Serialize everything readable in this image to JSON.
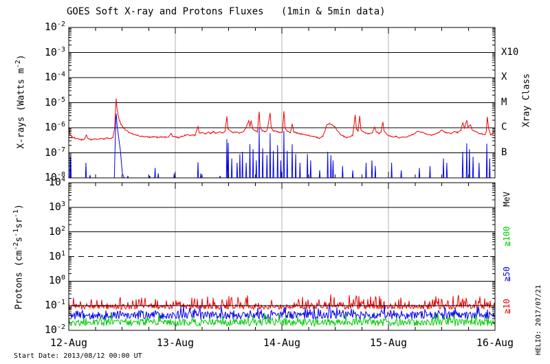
{
  "title": "GOES Soft X-ray and Protons Fluxes   (1min & 5min data)",
  "footer": {
    "start_date": "Start Date: 2013/08/12 00:00 UT"
  },
  "watermark": "HELIO: 2017/07/21",
  "colors": {
    "red": "#ee0000",
    "blue": "#0000ee",
    "green": "#00cc00",
    "grid_gray": "#b0b0b0",
    "axis": "#000000"
  },
  "chart_data": [
    {
      "type": "line",
      "panel": "xray",
      "ylabel": "X-rays (Watts m^{-2})",
      "y_tick_exponents": [
        -2,
        -3,
        -4,
        -5,
        -6,
        -7,
        -8
      ],
      "ylim_log": [
        -8,
        -2
      ],
      "x_range_days": [
        0,
        4
      ],
      "x_tick_labels": [
        "12-Aug",
        "13-Aug",
        "14-Aug",
        "15-Aug",
        "16-Aug"
      ],
      "x_minor_tick_days": 0.25,
      "grid_day_lines": [
        1,
        2,
        3
      ],
      "hlines_log": [
        -3,
        -4,
        -5,
        -6,
        -7
      ],
      "right_axis_title": "Xray Class",
      "right_axis_classes": [
        {
          "label": "X10",
          "log_y": -3
        },
        {
          "label": "X",
          "log_y": -4
        },
        {
          "label": "M",
          "log_y": -5
        },
        {
          "label": "C",
          "log_y": -6
        },
        {
          "label": "B",
          "log_y": -7
        }
      ],
      "series": [
        {
          "name": "xray_long_wavelength",
          "color": "#ee0000",
          "noise_log_amp": 0.022,
          "seed": 7,
          "points": [
            [
              0.0,
              6e-07
            ],
            [
              0.004,
              1e-06
            ],
            [
              0.01,
              5.5e-07
            ],
            [
              0.03,
              4.2e-07
            ],
            [
              0.06,
              3.9e-07
            ],
            [
              0.09,
              3.6e-07
            ],
            [
              0.12,
              3.3e-07
            ],
            [
              0.15,
              3.6e-07
            ],
            [
              0.165,
              5e-07
            ],
            [
              0.18,
              3.8e-07
            ],
            [
              0.21,
              3.3e-07
            ],
            [
              0.24,
              3.6e-07
            ],
            [
              0.27,
              3.4e-07
            ],
            [
              0.3,
              3.8e-07
            ],
            [
              0.33,
              3.6e-07
            ],
            [
              0.36,
              3.9e-07
            ],
            [
              0.39,
              3.7e-07
            ],
            [
              0.415,
              4.2e-07
            ],
            [
              0.43,
              9e-07
            ],
            [
              0.438,
              5e-06
            ],
            [
              0.445,
              1.45e-05
            ],
            [
              0.452,
              6.5e-06
            ],
            [
              0.462,
              3.2e-06
            ],
            [
              0.475,
              2e-06
            ],
            [
              0.49,
              1.4e-06
            ],
            [
              0.51,
              1.05e-06
            ],
            [
              0.535,
              8e-07
            ],
            [
              0.565,
              6.5e-07
            ],
            [
              0.6,
              5.5e-07
            ],
            [
              0.64,
              5e-07
            ],
            [
              0.68,
              4.6e-07
            ],
            [
              0.72,
              4.4e-07
            ],
            [
              0.76,
              4.2e-07
            ],
            [
              0.8,
              4.4e-07
            ],
            [
              0.83,
              4.1e-07
            ],
            [
              0.86,
              4.3e-07
            ],
            [
              0.9,
              4.2e-07
            ],
            [
              0.94,
              4.4e-07
            ],
            [
              0.96,
              6e-07
            ],
            [
              0.975,
              4.6e-07
            ],
            [
              1.0,
              4.4e-07
            ],
            [
              1.03,
              4e-07
            ],
            [
              1.06,
              4.6e-07
            ],
            [
              1.09,
              5e-07
            ],
            [
              1.11,
              5.5e-07
            ],
            [
              1.135,
              4.8e-07
            ],
            [
              1.16,
              5.2e-07
            ],
            [
              1.185,
              5e-07
            ],
            [
              1.213,
              1.15e-06
            ],
            [
              1.225,
              6e-07
            ],
            [
              1.25,
              6.5e-07
            ],
            [
              1.28,
              5.5e-07
            ],
            [
              1.31,
              6.5e-07
            ],
            [
              1.33,
              6e-07
            ],
            [
              1.355,
              7e-07
            ],
            [
              1.38,
              6.2e-07
            ],
            [
              1.41,
              6.8e-07
            ],
            [
              1.44,
              6.2e-07
            ],
            [
              1.465,
              7e-07
            ],
            [
              1.484,
              2.9e-06
            ],
            [
              1.495,
              9e-07
            ],
            [
              1.52,
              7e-07
            ],
            [
              1.545,
              6.4e-07
            ],
            [
              1.57,
              6.8e-07
            ],
            [
              1.6,
              6.2e-07
            ],
            [
              1.625,
              6.6e-07
            ],
            [
              1.65,
              8e-07
            ],
            [
              1.673,
              1.25e-06
            ],
            [
              1.69,
              2e-06
            ],
            [
              1.7,
              1.1e-06
            ],
            [
              1.712,
              1.9e-06
            ],
            [
              1.725,
              9e-07
            ],
            [
              1.745,
              7.5e-07
            ],
            [
              1.77,
              7e-07
            ],
            [
              1.787,
              4.2e-06
            ],
            [
              1.795,
              1.1e-06
            ],
            [
              1.815,
              7.5e-07
            ],
            [
              1.84,
              7e-07
            ],
            [
              1.862,
              8e-07
            ],
            [
              1.89,
              3.9e-06
            ],
            [
              1.9,
              1e-06
            ],
            [
              1.92,
              7.5e-07
            ],
            [
              1.95,
              7e-07
            ],
            [
              1.98,
              6.6e-07
            ],
            [
              2.005,
              6.8e-07
            ],
            [
              2.019,
              4.5e-06
            ],
            [
              2.03,
              1e-06
            ],
            [
              2.055,
              7e-07
            ],
            [
              2.08,
              6.4e-07
            ],
            [
              2.097,
              1.5e-06
            ],
            [
              2.11,
              7e-07
            ],
            [
              2.14,
              6.2e-07
            ],
            [
              2.18,
              5.6e-07
            ],
            [
              2.22,
              5.2e-07
            ],
            [
              2.26,
              4.8e-07
            ],
            [
              2.3,
              4.4e-07
            ],
            [
              2.33,
              4.1e-07
            ],
            [
              2.355,
              3.8e-07
            ],
            [
              2.385,
              4.6e-07
            ],
            [
              2.405,
              8e-07
            ],
            [
              2.42,
              1.25e-06
            ],
            [
              2.445,
              1.5e-06
            ],
            [
              2.47,
              1.35e-06
            ],
            [
              2.495,
              1.1e-06
            ],
            [
              2.52,
              7.5e-07
            ],
            [
              2.55,
              5.5e-07
            ],
            [
              2.58,
              4.5e-07
            ],
            [
              2.61,
              4e-07
            ],
            [
              2.64,
              4.4e-07
            ],
            [
              2.665,
              5e-07
            ],
            [
              2.688,
              3.2e-06
            ],
            [
              2.7,
              9e-07
            ],
            [
              2.715,
              7.5e-07
            ],
            [
              2.73,
              2.9e-06
            ],
            [
              2.742,
              8.5e-07
            ],
            [
              2.765,
              6.8e-07
            ],
            [
              2.79,
              6.2e-07
            ],
            [
              2.82,
              5.8e-07
            ],
            [
              2.85,
              6.4e-07
            ],
            [
              2.87,
              1.05e-06
            ],
            [
              2.885,
              7e-07
            ],
            [
              2.91,
              6e-07
            ],
            [
              2.93,
              6.6e-07
            ],
            [
              2.948,
              1.7e-06
            ],
            [
              2.96,
              7e-07
            ],
            [
              2.985,
              5.5e-07
            ],
            [
              3.01,
              4.8e-07
            ],
            [
              3.04,
              4.2e-07
            ],
            [
              3.07,
              4.6e-07
            ],
            [
              3.1,
              4e-07
            ],
            [
              3.13,
              4.4e-07
            ],
            [
              3.16,
              4.2e-07
            ],
            [
              3.19,
              4.6e-07
            ],
            [
              3.22,
              5.2e-07
            ],
            [
              3.25,
              6.2e-07
            ],
            [
              3.28,
              7.2e-07
            ],
            [
              3.31,
              6.8e-07
            ],
            [
              3.34,
              6e-07
            ],
            [
              3.37,
              5.4e-07
            ],
            [
              3.4,
              5.2e-07
            ],
            [
              3.44,
              5.6e-07
            ],
            [
              3.47,
              6.4e-07
            ],
            [
              3.5,
              8.2e-07
            ],
            [
              3.52,
              7e-07
            ],
            [
              3.55,
              6.2e-07
            ],
            [
              3.59,
              6e-07
            ],
            [
              3.62,
              6.8e-07
            ],
            [
              3.65,
              6.4e-07
            ],
            [
              3.68,
              8e-07
            ],
            [
              3.698,
              1.6e-06
            ],
            [
              3.712,
              9.5e-07
            ],
            [
              3.735,
              2e-06
            ],
            [
              3.748,
              1.05e-06
            ],
            [
              3.768,
              1.35e-06
            ],
            [
              3.785,
              8.5e-07
            ],
            [
              3.81,
              7.2e-07
            ],
            [
              3.845,
              6.2e-07
            ],
            [
              3.88,
              5.6e-07
            ],
            [
              3.905,
              5.2e-07
            ],
            [
              3.918,
              7e-07
            ],
            [
              3.928,
              2.8e-06
            ],
            [
              3.94,
              9e-07
            ],
            [
              3.958,
              5.2e-07
            ],
            [
              3.975,
              5.8e-07
            ],
            [
              4.0,
              7.5e-07
            ]
          ]
        },
        {
          "name": "xray_short_wavelength",
          "color": "#0000ee",
          "floor": 6e-09,
          "spike_half_width_days": 0.0045,
          "flare_event": [
            [
              0.428,
              6e-09
            ],
            [
              0.441,
              2.2e-06
            ],
            [
              0.4455,
              3.6e-06
            ],
            [
              0.455,
              1.1e-06
            ],
            [
              0.484,
              1.3e-07
            ],
            [
              0.503,
              1.5e-08
            ],
            [
              0.52,
              6e-09
            ]
          ],
          "spikes": [
            [
              0.013,
              7e-08
            ],
            [
              0.019,
              6.5e-08
            ],
            [
              0.161,
              4e-08
            ],
            [
              0.2,
              1.3e-08
            ],
            [
              0.555,
              1.2e-08
            ],
            [
              0.76,
              1.2e-08
            ],
            [
              0.81,
              2.5e-08
            ],
            [
              0.84,
              1.5e-08
            ],
            [
              0.99,
              1.5e-08
            ],
            [
              1.213,
              4.2e-08
            ],
            [
              1.24,
              1.5e-08
            ],
            [
              1.42,
              1.2e-08
            ],
            [
              1.484,
              3.5e-07
            ],
            [
              1.497,
              2.5e-07
            ],
            [
              1.53,
              6e-08
            ],
            [
              1.58,
              4e-08
            ],
            [
              1.606,
              9e-08
            ],
            [
              1.63,
              1.1e-07
            ],
            [
              1.665,
              4e-08
            ],
            [
              1.7,
              2.2e-07
            ],
            [
              1.73,
              1.4e-07
            ],
            [
              1.76,
              5e-08
            ],
            [
              1.787,
              1e-06
            ],
            [
              1.82,
              1.5e-07
            ],
            [
              1.86,
              8e-08
            ],
            [
              1.89,
              6e-07
            ],
            [
              1.92,
              1.2e-07
            ],
            [
              1.96,
              2e-07
            ],
            [
              1.99,
              5e-08
            ],
            [
              2.019,
              7.3e-07
            ],
            [
              2.05,
              1.2e-07
            ],
            [
              2.097,
              2.2e-07
            ],
            [
              2.13,
              9e-08
            ],
            [
              2.17,
              4e-08
            ],
            [
              2.24,
              9e-08
            ],
            [
              2.27,
              5e-08
            ],
            [
              2.355,
              2e-08
            ],
            [
              2.43,
              1.1e-07
            ],
            [
              2.46,
              8e-08
            ],
            [
              2.48,
              5e-08
            ],
            [
              2.57,
              3e-08
            ],
            [
              2.665,
              2e-08
            ],
            [
              2.79,
              4e-08
            ],
            [
              2.845,
              5e-08
            ],
            [
              2.877,
              3e-08
            ],
            [
              3.03,
              4e-08
            ],
            [
              3.12,
              2e-08
            ],
            [
              3.29,
              2.5e-08
            ],
            [
              3.39,
              3e-08
            ],
            [
              3.516,
              6e-08
            ],
            [
              3.548,
              4e-08
            ],
            [
              3.697,
              1.1e-07
            ],
            [
              3.735,
              2.4e-07
            ],
            [
              3.76,
              1.4e-07
            ],
            [
              3.794,
              7e-08
            ],
            [
              3.85,
              4e-08
            ],
            [
              3.923,
              2.3e-07
            ],
            [
              3.95,
              6e-08
            ]
          ]
        }
      ]
    },
    {
      "type": "line",
      "panel": "protons",
      "ylabel": "Protons (cm^{-2}s^{-1}sr^{-1})",
      "y_tick_exponents": [
        4,
        3,
        2,
        1,
        0,
        -1,
        -2
      ],
      "ylim_log": [
        -2,
        4
      ],
      "x_range_days": [
        0,
        4
      ],
      "x_tick_labels": [
        "12-Aug",
        "13-Aug",
        "14-Aug",
        "15-Aug",
        "16-Aug"
      ],
      "x_minor_tick_days": 0.25,
      "grid_day_lines": [
        1,
        2,
        3
      ],
      "hlines_log": [
        3,
        2,
        0,
        -1
      ],
      "threshold_dashed_log": 1,
      "right_axis_labels": [
        {
          "text": "MeV",
          "color": "#000000",
          "log_y": 3.32
        },
        {
          "text": "≧100",
          "color": "#00cc00",
          "log_y": 1.82
        },
        {
          "text": "≧50",
          "color": "#0000ee",
          "log_y": 0.29
        },
        {
          "text": "≧10",
          "color": "#ee0000",
          "log_y": -1.02
        }
      ],
      "series": [
        {
          "name": "protons_gte_10MeV",
          "color": "#ee0000",
          "center_log": -1.05,
          "half_amp_log": 0.1,
          "spike_amp_log": 0.42,
          "spike_prob": 0.3,
          "seed": 101
        },
        {
          "name": "protons_gte_50MeV",
          "color": "#0000ee",
          "center_log": -1.4,
          "half_amp_log": 0.16,
          "spike_amp_log": 0.3,
          "spike_prob": 0.18,
          "seed": 202
        },
        {
          "name": "protons_gte_100MeV",
          "color": "#00cc00",
          "center_log": -1.68,
          "half_amp_log": 0.15,
          "spike_amp_log": 0.26,
          "spike_prob": 0.15,
          "seed": 303
        }
      ]
    }
  ]
}
